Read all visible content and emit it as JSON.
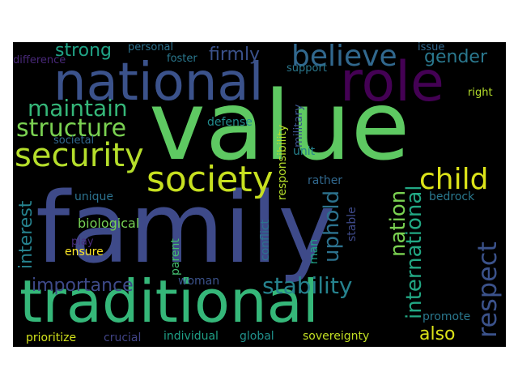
{
  "words": [
    {
      "id": "family",
      "text": "family",
      "color": "#3e4a89"
    },
    {
      "id": "value",
      "text": "value",
      "color": "#5ec962"
    },
    {
      "id": "traditional",
      "text": "traditional",
      "color": "#35b779"
    },
    {
      "id": "national",
      "text": "national",
      "color": "#3b528b"
    },
    {
      "id": "role",
      "text": "role",
      "color": "#440154"
    },
    {
      "id": "society",
      "text": "society",
      "color": "#c7e020"
    },
    {
      "id": "security",
      "text": "security",
      "color": "#b5de2b"
    },
    {
      "id": "structure",
      "text": "structure",
      "color": "#7ad151"
    },
    {
      "id": "believe",
      "text": "believe",
      "color": "#31688e"
    },
    {
      "id": "maintain",
      "text": "maintain",
      "color": "#35b779"
    },
    {
      "id": "child",
      "text": "child",
      "color": "#dce319"
    },
    {
      "id": "respect",
      "text": "respect",
      "color": "#3b528b"
    },
    {
      "id": "stability",
      "text": "stability",
      "color": "#26828e"
    },
    {
      "id": "importance",
      "text": "importance",
      "color": "#3e4a89"
    },
    {
      "id": "uphold",
      "text": "uphold",
      "color": "#2c728e"
    },
    {
      "id": "nation",
      "text": "nation",
      "color": "#7ad151"
    },
    {
      "id": "international",
      "text": "international",
      "color": "#22a884"
    },
    {
      "id": "strong",
      "text": "strong",
      "color": "#20a386"
    },
    {
      "id": "firmly",
      "text": "firmly",
      "color": "#3b528b"
    },
    {
      "id": "gender",
      "text": "gender",
      "color": "#2a788e"
    },
    {
      "id": "interest",
      "text": "interest",
      "color": "#26828e"
    },
    {
      "id": "also",
      "text": "also",
      "color": "#dce319"
    },
    {
      "id": "biological",
      "text": "biological",
      "color": "#75d054"
    },
    {
      "id": "ensure",
      "text": "ensure",
      "color": "#fde725"
    },
    {
      "id": "unique",
      "text": "unique",
      "color": "#2c728e"
    },
    {
      "id": "play",
      "text": "play",
      "color": "#472c7a"
    },
    {
      "id": "prioritize",
      "text": "prioritize",
      "color": "#d2e21b"
    },
    {
      "id": "crucial",
      "text": "crucial",
      "color": "#414487"
    },
    {
      "id": "individual",
      "text": "individual",
      "color": "#1fa187"
    },
    {
      "id": "global",
      "text": "global",
      "color": "#21918c"
    },
    {
      "id": "sovereignty",
      "text": "sovereignty",
      "color": "#c2df23"
    },
    {
      "id": "promote",
      "text": "promote",
      "color": "#2a788e"
    },
    {
      "id": "woman",
      "text": "woman",
      "color": "#3b528b"
    },
    {
      "id": "parent",
      "text": "parent",
      "color": "#44bf70"
    },
    {
      "id": "man",
      "text": "man",
      "color": "#20a386"
    },
    {
      "id": "conflict",
      "text": "conflict",
      "color": "#2c728e"
    },
    {
      "id": "stable",
      "text": "stable",
      "color": "#3e4a89"
    },
    {
      "id": "rather",
      "text": "rather",
      "color": "#31688e"
    },
    {
      "id": "bedrock",
      "text": "bedrock",
      "color": "#2a788e"
    },
    {
      "id": "responsibility",
      "text": "responsibility",
      "color": "#b5de2b"
    },
    {
      "id": "military",
      "text": "military",
      "color": "#3b528b"
    },
    {
      "id": "unit",
      "text": "unit",
      "color": "#26828e"
    },
    {
      "id": "defense",
      "text": "defense",
      "color": "#228c8d"
    },
    {
      "id": "societal",
      "text": "societal",
      "color": "#31688e"
    },
    {
      "id": "difference",
      "text": "difference",
      "color": "#482878"
    },
    {
      "id": "personal",
      "text": "personal",
      "color": "#2c728e"
    },
    {
      "id": "foster",
      "text": "foster",
      "color": "#2a788e"
    },
    {
      "id": "support",
      "text": "support",
      "color": "#2a788e"
    },
    {
      "id": "issue",
      "text": "issue",
      "color": "#31688e"
    },
    {
      "id": "right",
      "text": "right",
      "color": "#b5de2b"
    }
  ]
}
